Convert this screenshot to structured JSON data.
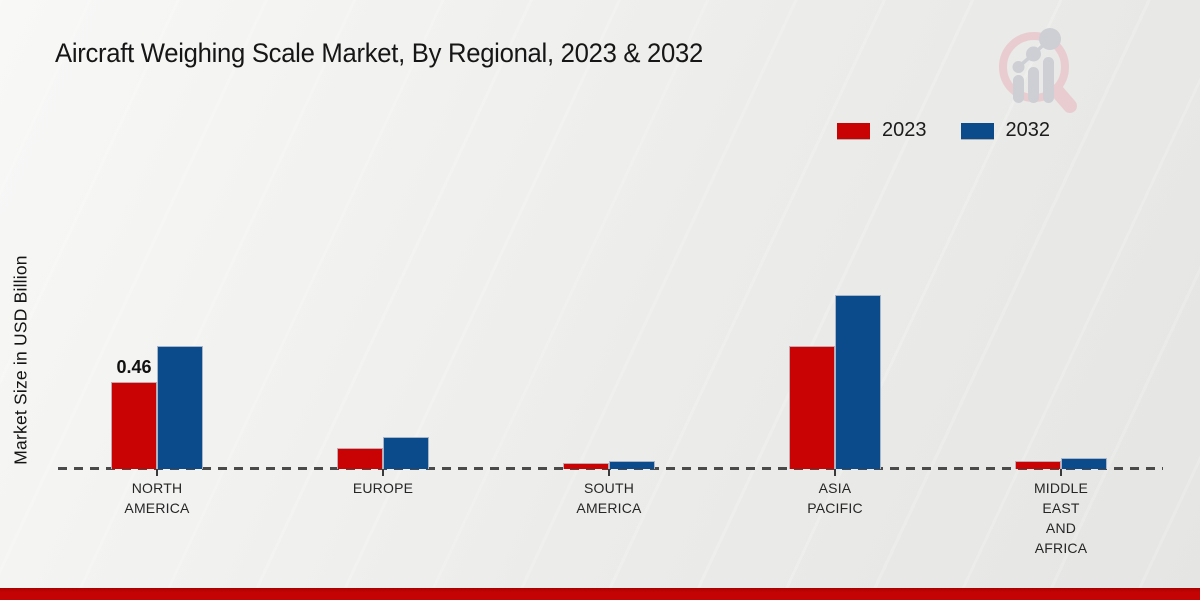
{
  "header": {
    "title": "Aircraft Weighing Scale Market, By Regional, 2023 & 2032"
  },
  "icons": {
    "logo": "magnifier-bar-chart-logo"
  },
  "chart_data": {
    "type": "bar",
    "title": "Aircraft Weighing Scale Market, By Regional, 2023 & 2032",
    "xlabel": "",
    "ylabel": "Market Size in USD Billion",
    "categories": [
      "NORTH AMERICA",
      "EUROPE",
      "SOUTH AMERICA",
      "ASIA PACIFIC",
      "MIDDLE EAST AND AFRICA"
    ],
    "category_label_lines": [
      [
        "NORTH",
        "AMERICA"
      ],
      [
        "EUROPE"
      ],
      [
        "SOUTH",
        "AMERICA"
      ],
      [
        "ASIA",
        "PACIFIC"
      ],
      [
        "MIDDLE",
        "EAST",
        "AND",
        "AFRICA"
      ]
    ],
    "series": [
      {
        "name": "2023",
        "color": "#c90303",
        "values": [
          0.46,
          0.11,
          0.03,
          0.65,
          0.04
        ]
      },
      {
        "name": "2032",
        "color": "#0b4a8b",
        "values": [
          0.65,
          0.17,
          0.04,
          0.92,
          0.06
        ]
      }
    ],
    "data_labels": [
      {
        "text": "0.46",
        "category_index": 0,
        "series_index": 0
      }
    ],
    "ylim": [
      0,
      1.0
    ],
    "grid": false,
    "legend_position": "top-right",
    "baseline_style": "dashed",
    "accent_colors": {
      "series_2023": "#c90303",
      "series_2032": "#0b4a8b",
      "bottom_bar": "#c40404",
      "axis_dash": "#4a4a4a"
    }
  }
}
